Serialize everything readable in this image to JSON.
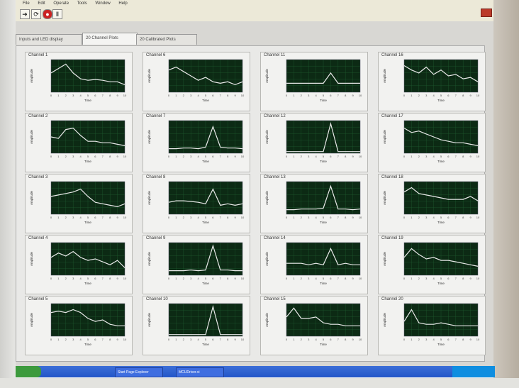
{
  "menu": [
    "File",
    "Edit",
    "Operate",
    "Tools",
    "Window",
    "Help"
  ],
  "tabs": [
    {
      "label": "Inputs and LED display",
      "active": false
    },
    {
      "label": "20 Channel Plots",
      "active": true
    },
    {
      "label": "20 Calibrated Plots",
      "active": false
    }
  ],
  "axis": {
    "xlabel": "Time",
    "ylabel": "Amplitude"
  },
  "taskbar": {
    "items": [
      "Start Page Explorer",
      "MCUDriver.vi"
    ]
  },
  "chart_data": [
    {
      "type": "line",
      "title": "Channel 1",
      "x": [
        0,
        1,
        2,
        3,
        4,
        5,
        6,
        7,
        8,
        9,
        10
      ],
      "values": [
        0.6,
        0.75,
        0.9,
        0.6,
        0.4,
        0.35,
        0.38,
        0.35,
        0.3,
        0.3,
        0.2
      ],
      "ylim": [
        0,
        1
      ]
    },
    {
      "type": "line",
      "title": "Channel 6",
      "x": [
        0,
        1,
        2,
        3,
        4,
        5,
        6,
        7,
        8,
        9,
        10
      ],
      "values": [
        0.7,
        0.8,
        0.65,
        0.5,
        0.35,
        0.45,
        0.3,
        0.25,
        0.3,
        0.2,
        0.3
      ],
      "ylim": [
        0,
        1
      ]
    },
    {
      "type": "line",
      "title": "Channel 11",
      "x": [
        0,
        1,
        2,
        3,
        4,
        5,
        6,
        7,
        8,
        9,
        10
      ],
      "values": [
        0.25,
        0.25,
        0.25,
        0.25,
        0.25,
        0.25,
        0.6,
        0.25,
        0.25,
        0.25,
        0.25
      ],
      "ylim": [
        0,
        1
      ]
    },
    {
      "type": "line",
      "title": "Channel 16",
      "x": [
        0,
        1,
        2,
        3,
        4,
        5,
        6,
        7,
        8,
        9,
        10
      ],
      "values": [
        0.85,
        0.7,
        0.6,
        0.8,
        0.55,
        0.7,
        0.5,
        0.55,
        0.4,
        0.45,
        0.3
      ],
      "ylim": [
        0,
        1
      ]
    },
    {
      "type": "line",
      "title": "Channel 2",
      "x": [
        0,
        1,
        2,
        3,
        4,
        5,
        6,
        7,
        8,
        9,
        10
      ],
      "values": [
        0.5,
        0.45,
        0.75,
        0.8,
        0.55,
        0.35,
        0.35,
        0.3,
        0.3,
        0.25,
        0.2
      ],
      "ylim": [
        0,
        1
      ]
    },
    {
      "type": "line",
      "title": "Channel 7",
      "x": [
        0,
        1,
        2,
        3,
        4,
        5,
        6,
        7,
        8,
        9,
        10
      ],
      "values": [
        0.1,
        0.1,
        0.12,
        0.12,
        0.1,
        0.15,
        0.85,
        0.15,
        0.12,
        0.12,
        0.1
      ],
      "ylim": [
        0,
        1
      ]
    },
    {
      "type": "line",
      "title": "Channel 12",
      "x": [
        0,
        1,
        2,
        3,
        4,
        5,
        6,
        7,
        8,
        9,
        10
      ],
      "values": [
        0.0,
        0.0,
        0.0,
        0.0,
        0.0,
        0.0,
        0.95,
        0.0,
        0.0,
        0.0,
        0.0
      ],
      "ylim": [
        0,
        1
      ]
    },
    {
      "type": "line",
      "title": "Channel 17",
      "x": [
        0,
        1,
        2,
        3,
        4,
        5,
        6,
        7,
        8,
        9,
        10
      ],
      "values": [
        0.8,
        0.65,
        0.7,
        0.6,
        0.5,
        0.4,
        0.35,
        0.3,
        0.3,
        0.25,
        0.2
      ],
      "ylim": [
        0,
        1
      ]
    },
    {
      "type": "line",
      "title": "Channel 3",
      "x": [
        0,
        1,
        2,
        3,
        4,
        5,
        6,
        7,
        8,
        9,
        10
      ],
      "values": [
        0.55,
        0.6,
        0.65,
        0.7,
        0.8,
        0.55,
        0.35,
        0.3,
        0.25,
        0.2,
        0.3
      ],
      "ylim": [
        0,
        1
      ]
    },
    {
      "type": "line",
      "title": "Channel 8",
      "x": [
        0,
        1,
        2,
        3,
        4,
        5,
        6,
        7,
        8,
        9,
        10
      ],
      "values": [
        0.35,
        0.4,
        0.4,
        0.38,
        0.35,
        0.3,
        0.8,
        0.25,
        0.3,
        0.25,
        0.3
      ],
      "ylim": [
        0,
        1
      ]
    },
    {
      "type": "line",
      "title": "Channel 13",
      "x": [
        0,
        1,
        2,
        3,
        4,
        5,
        6,
        7,
        8,
        9,
        10
      ],
      "values": [
        0.1,
        0.1,
        0.12,
        0.12,
        0.12,
        0.15,
        0.9,
        0.12,
        0.12,
        0.1,
        0.12
      ],
      "ylim": [
        0,
        1
      ]
    },
    {
      "type": "line",
      "title": "Channel 18",
      "x": [
        0,
        1,
        2,
        3,
        4,
        5,
        6,
        7,
        8,
        9,
        10
      ],
      "values": [
        0.7,
        0.85,
        0.65,
        0.6,
        0.55,
        0.5,
        0.45,
        0.45,
        0.45,
        0.55,
        0.4
      ],
      "ylim": [
        0,
        1
      ]
    },
    {
      "type": "line",
      "title": "Channel 4",
      "x": [
        0,
        1,
        2,
        3,
        4,
        5,
        6,
        7,
        8,
        9,
        10
      ],
      "values": [
        0.55,
        0.7,
        0.6,
        0.75,
        0.55,
        0.45,
        0.5,
        0.4,
        0.3,
        0.45,
        0.2
      ],
      "ylim": [
        0,
        1
      ]
    },
    {
      "type": "line",
      "title": "Channel 9",
      "x": [
        0,
        1,
        2,
        3,
        4,
        5,
        6,
        7,
        8,
        9,
        10
      ],
      "values": [
        0.1,
        0.1,
        0.1,
        0.12,
        0.1,
        0.12,
        0.95,
        0.12,
        0.12,
        0.1,
        0.1
      ],
      "ylim": [
        0,
        1
      ]
    },
    {
      "type": "line",
      "title": "Channel 14",
      "x": [
        0,
        1,
        2,
        3,
        4,
        5,
        6,
        7,
        8,
        9,
        10
      ],
      "values": [
        0.35,
        0.35,
        0.35,
        0.3,
        0.35,
        0.3,
        0.85,
        0.3,
        0.35,
        0.3,
        0.3
      ],
      "ylim": [
        0,
        1
      ]
    },
    {
      "type": "line",
      "title": "Channel 19",
      "x": [
        0,
        1,
        2,
        3,
        4,
        5,
        6,
        7,
        8,
        9,
        10
      ],
      "values": [
        0.55,
        0.85,
        0.65,
        0.5,
        0.55,
        0.45,
        0.45,
        0.4,
        0.35,
        0.3,
        0.25
      ],
      "ylim": [
        0,
        1
      ]
    },
    {
      "type": "line",
      "title": "Channel 5",
      "x": [
        0,
        1,
        2,
        3,
        4,
        5,
        6,
        7,
        8,
        9,
        10
      ],
      "values": [
        0.75,
        0.8,
        0.75,
        0.85,
        0.75,
        0.55,
        0.45,
        0.5,
        0.35,
        0.3,
        0.3
      ],
      "ylim": [
        0,
        1
      ]
    },
    {
      "type": "line",
      "title": "Channel 10",
      "x": [
        0,
        1,
        2,
        3,
        4,
        5,
        6,
        7,
        8,
        9,
        10
      ],
      "values": [
        0.0,
        0.0,
        0.0,
        0.0,
        0.0,
        0.0,
        0.95,
        0.0,
        0.0,
        0.0,
        0.0
      ],
      "ylim": [
        0,
        1
      ]
    },
    {
      "type": "line",
      "title": "Channel 15",
      "x": [
        0,
        1,
        2,
        3,
        4,
        5,
        6,
        7,
        8,
        9,
        10
      ],
      "values": [
        0.6,
        0.9,
        0.55,
        0.55,
        0.6,
        0.4,
        0.35,
        0.35,
        0.3,
        0.3,
        0.3
      ],
      "ylim": [
        0,
        1
      ]
    },
    {
      "type": "line",
      "title": "Channel 20",
      "x": [
        0,
        1,
        2,
        3,
        4,
        5,
        6,
        7,
        8,
        9,
        10
      ],
      "values": [
        0.45,
        0.85,
        0.4,
        0.35,
        0.35,
        0.4,
        0.35,
        0.3,
        0.3,
        0.3,
        0.3
      ],
      "ylim": [
        0,
        1
      ]
    }
  ]
}
